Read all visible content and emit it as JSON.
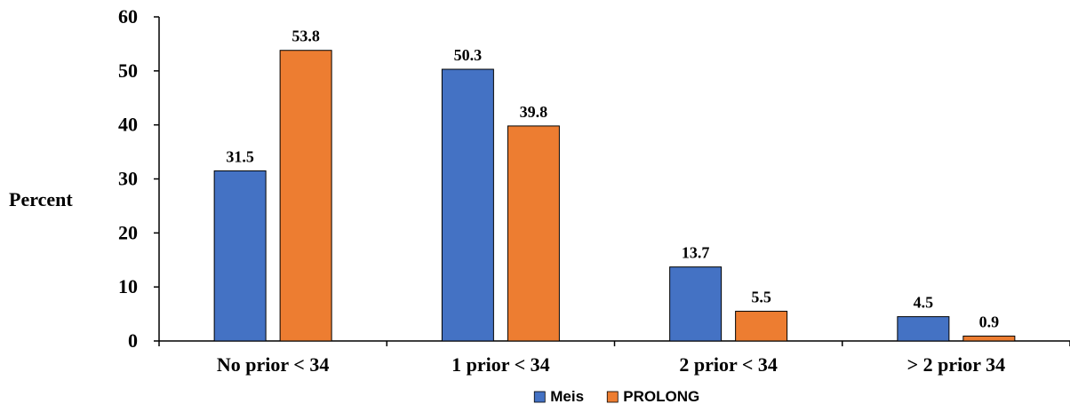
{
  "chart_data": {
    "type": "bar",
    "categories": [
      "No prior < 34",
      "1 prior < 34",
      "2 prior < 34",
      "> 2 prior 34"
    ],
    "series": [
      {
        "name": "Meis",
        "values": [
          31.5,
          50.3,
          13.7,
          4.5
        ],
        "color": "#4472C4"
      },
      {
        "name": "PROLONG",
        "values": [
          53.8,
          39.8,
          5.5,
          0.9
        ],
        "color": "#ED7D31"
      }
    ],
    "ylabel": "Percent",
    "xlabel": "",
    "ylim": [
      0,
      60
    ],
    "yticks": [
      0,
      10,
      20,
      30,
      40,
      50,
      60
    ],
    "grid": false,
    "legend_position": "bottom-center",
    "data_labels": true
  }
}
